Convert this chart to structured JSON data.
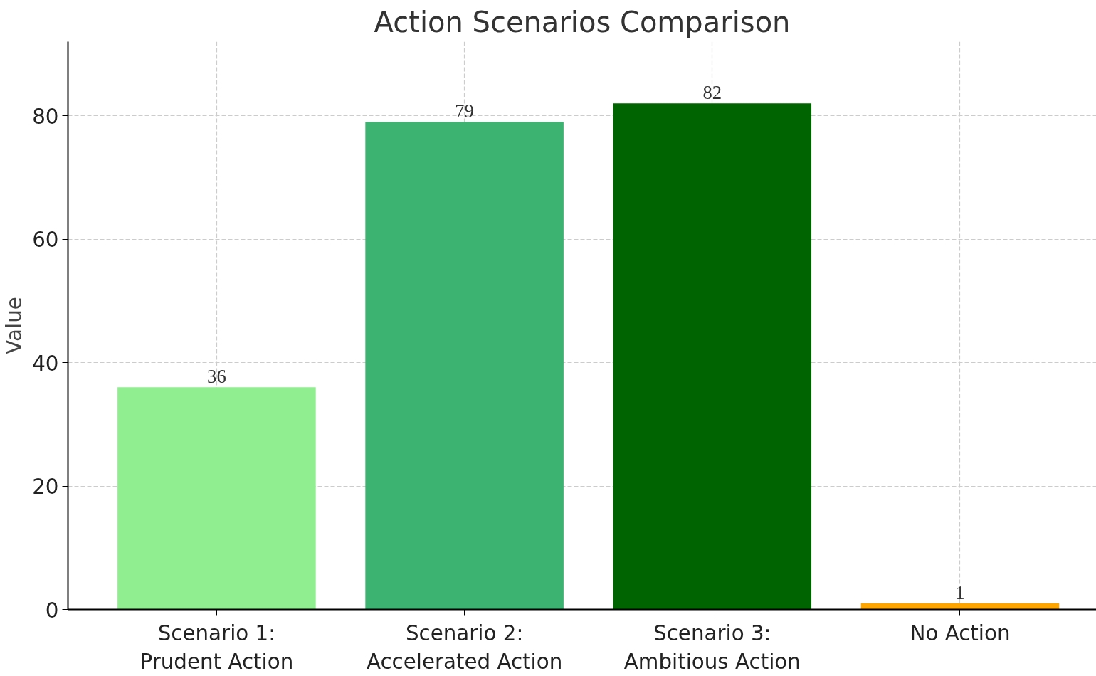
{
  "chart_data": {
    "type": "bar",
    "title": "Action Scenarios Comparison",
    "ylabel": "Value",
    "categories": [
      "Scenario 1:\nPrudent Action",
      "Scenario 2:\nAccelerated Action",
      "Scenario 3:\nAmbitious Action",
      "No Action"
    ],
    "values": [
      36,
      79,
      82,
      1
    ],
    "colors": [
      "#90ee90",
      "#3cb371",
      "#006400",
      "#ffa500"
    ],
    "ylim": [
      0,
      92
    ],
    "yticks": [
      0,
      20,
      40,
      60,
      80
    ],
    "grid": true,
    "data_labels": true
  }
}
